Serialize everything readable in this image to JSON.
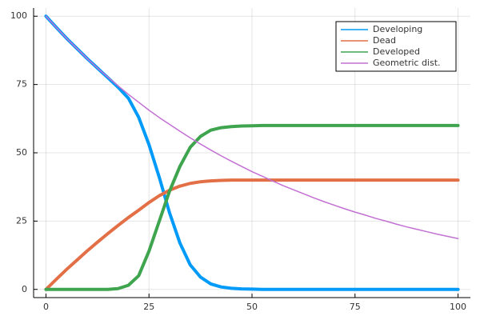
{
  "chart_data": {
    "type": "line",
    "x": [
      0,
      2.5,
      5,
      7.5,
      10,
      12.5,
      15,
      17.5,
      20,
      22.5,
      25,
      27.5,
      30,
      32.5,
      35,
      37.5,
      40,
      42.5,
      45,
      47.5,
      50,
      52.5,
      55,
      57.5,
      60,
      62.5,
      65,
      67.5,
      70,
      72.5,
      75,
      77.5,
      80,
      82.5,
      85,
      87.5,
      90,
      92.5,
      95,
      97.5,
      100
    ],
    "series": [
      {
        "name": "Developing",
        "color": "#009af9",
        "line_width": 4,
        "values": [
          100,
          95.9,
          91.9,
          88.2,
          84.5,
          81.0,
          77.5,
          74.0,
          70.0,
          63.0,
          53.0,
          41.0,
          28.0,
          17.0,
          9.0,
          4.5,
          2.0,
          0.9,
          0.4,
          0.2,
          0.1,
          0,
          0,
          0,
          0,
          0,
          0,
          0,
          0,
          0,
          0,
          0,
          0,
          0,
          0,
          0,
          0,
          0,
          0,
          0,
          0
        ]
      },
      {
        "name": "Dead",
        "color": "#e26f46",
        "line_width": 4,
        "values": [
          0,
          3.7,
          7.3,
          10.7,
          14.1,
          17.3,
          20.4,
          23.4,
          26.3,
          29.0,
          31.8,
          34.3,
          36.3,
          37.8,
          38.8,
          39.4,
          39.7,
          39.9,
          40,
          40,
          40,
          40,
          40,
          40,
          40,
          40,
          40,
          40,
          40,
          40,
          40,
          40,
          40,
          40,
          40,
          40,
          40,
          40,
          40,
          40,
          40
        ]
      },
      {
        "name": "Developed",
        "color": "#3ea44e",
        "line_width": 4,
        "values": [
          0,
          0,
          0,
          0,
          0,
          0,
          0,
          0.3,
          1.5,
          5,
          14,
          25,
          36,
          45,
          52,
          56,
          58.3,
          59.2,
          59.6,
          59.8,
          59.9,
          60,
          60,
          60,
          60,
          60,
          60,
          60,
          60,
          60,
          60,
          60,
          60,
          60,
          60,
          60,
          60,
          60,
          60,
          60,
          60
        ]
      },
      {
        "name": "Geometric dist.",
        "color": "#c271d2",
        "line_width": 1.5,
        "values": [
          100,
          95.9,
          91.9,
          88.2,
          84.5,
          81.0,
          77.7,
          74.5,
          71.4,
          68.5,
          65.6,
          62.9,
          60.4,
          57.9,
          55.5,
          53.2,
          51.0,
          48.9,
          46.9,
          45.0,
          43.1,
          41.4,
          39.7,
          38.0,
          36.5,
          35.0,
          33.5,
          32.1,
          30.8,
          29.5,
          28.3,
          27.2,
          26.0,
          25.0,
          23.9,
          22.9,
          22.0,
          21.1,
          20.2,
          19.4,
          18.6
        ]
      }
    ],
    "xlim": [
      -3,
      103
    ],
    "ylim": [
      -3,
      103
    ],
    "xticks": [
      0,
      25,
      50,
      75,
      100
    ],
    "yticks": [
      0,
      25,
      50,
      75,
      100
    ],
    "grid": true,
    "legend": "top-right"
  }
}
